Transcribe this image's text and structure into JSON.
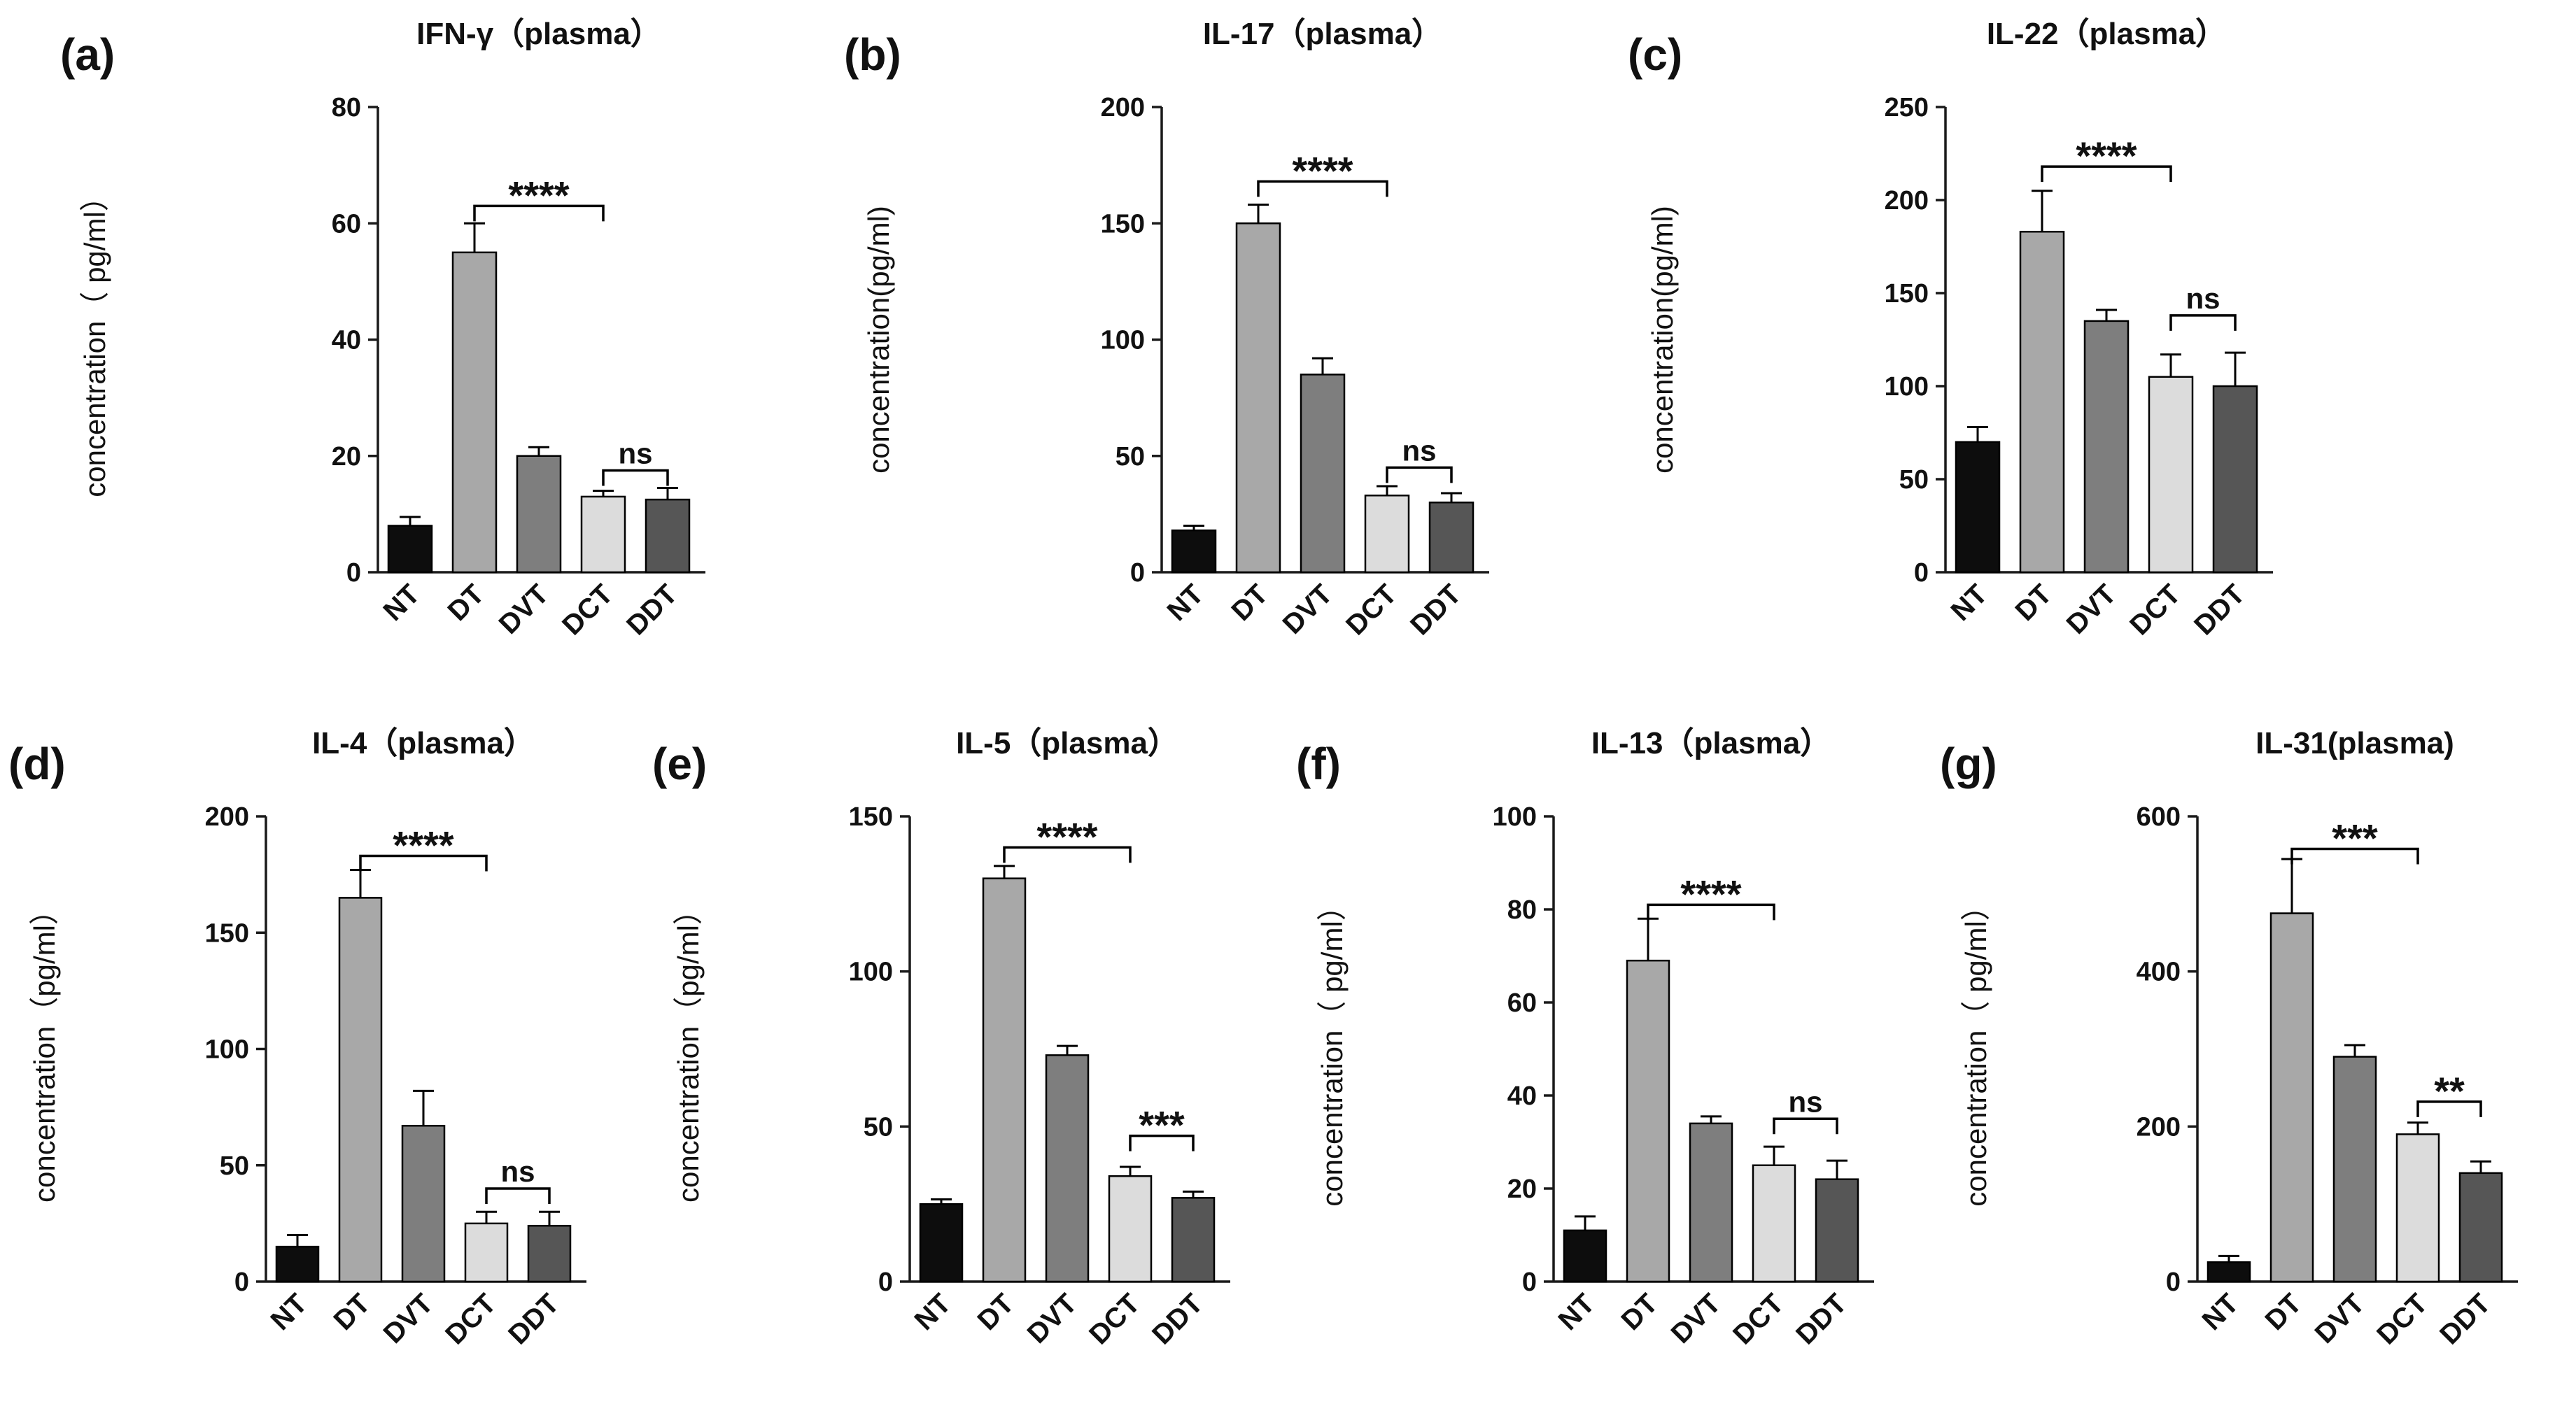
{
  "figure": {
    "categories": [
      "NT",
      "DT",
      "DVT",
      "DCT",
      "DDT"
    ],
    "bar_fill_colors": [
      "#0d0d0d",
      "#a8a8a8",
      "#7e7e7e",
      "#dcdcdc",
      "#565656"
    ],
    "bar_outline_color": "#000000",
    "axis_color": "#1a1a1a",
    "background_color": "#ffffff"
  },
  "chart_data": [
    {
      "type": "bar",
      "row": 1,
      "panel_label": "(a)",
      "title": "IFN-γ（plasma）",
      "ylabel": "concentration（ pg/ml）",
      "categories": [
        "NT",
        "DT",
        "DVT",
        "DCT",
        "DDT"
      ],
      "values": [
        8,
        55,
        20,
        13,
        12.5
      ],
      "errors": [
        1.5,
        5,
        1.5,
        1,
        2
      ],
      "ylim": [
        0,
        80
      ],
      "yticks": [
        0,
        20,
        40,
        60,
        80
      ],
      "grid": false,
      "legend": false,
      "significance": [
        {
          "from": "DT",
          "to": "DCT",
          "label": "****",
          "y": 63
        },
        {
          "from": "DCT",
          "to": "DDT",
          "label": "ns",
          "y": 17.5
        }
      ]
    },
    {
      "type": "bar",
      "row": 1,
      "panel_label": "(b)",
      "title": "IL-17（plasma）",
      "ylabel": "concentration(pg/ml)",
      "categories": [
        "NT",
        "DT",
        "DVT",
        "DCT",
        "DDT"
      ],
      "values": [
        18,
        150,
        85,
        33,
        30
      ],
      "errors": [
        2,
        8,
        7,
        4,
        4
      ],
      "ylim": [
        0,
        200
      ],
      "yticks": [
        0,
        50,
        100,
        150,
        200
      ],
      "grid": false,
      "legend": false,
      "significance": [
        {
          "from": "DT",
          "to": "DCT",
          "label": "****",
          "y": 168
        },
        {
          "from": "DCT",
          "to": "DDT",
          "label": "ns",
          "y": 45
        }
      ]
    },
    {
      "type": "bar",
      "row": 1,
      "panel_label": "(c)",
      "title": "IL-22（plasma）",
      "ylabel": "concentration(pg/ml)",
      "categories": [
        "NT",
        "DT",
        "DVT",
        "DCT",
        "DDT"
      ],
      "values": [
        70,
        183,
        135,
        105,
        100
      ],
      "errors": [
        8,
        22,
        6,
        12,
        18
      ],
      "ylim": [
        0,
        250
      ],
      "yticks": [
        0,
        50,
        100,
        150,
        200,
        250
      ],
      "grid": false,
      "legend": false,
      "significance": [
        {
          "from": "DT",
          "to": "DCT",
          "label": "****",
          "y": 218
        },
        {
          "from": "DCT",
          "to": "DDT",
          "label": "ns",
          "y": 138
        }
      ]
    },
    {
      "type": "bar",
      "row": 2,
      "panel_label": "(d)",
      "title": "IL-4（plasma）",
      "ylabel": "concentration（pg/ml）",
      "categories": [
        "NT",
        "DT",
        "DVT",
        "DCT",
        "DDT"
      ],
      "values": [
        15,
        165,
        67,
        25,
        24
      ],
      "errors": [
        5,
        12,
        15,
        5,
        6
      ],
      "ylim": [
        0,
        200
      ],
      "yticks": [
        0,
        50,
        100,
        150,
        200
      ],
      "grid": false,
      "legend": false,
      "significance": [
        {
          "from": "DT",
          "to": "DCT",
          "label": "****",
          "y": 183
        },
        {
          "from": "DCT",
          "to": "DDT",
          "label": "ns",
          "y": 40
        }
      ]
    },
    {
      "type": "bar",
      "row": 2,
      "panel_label": "(e)",
      "title": "IL-5（plasma）",
      "ylabel": "concentration（pg/ml）",
      "categories": [
        "NT",
        "DT",
        "DVT",
        "DCT",
        "DDT"
      ],
      "values": [
        25,
        130,
        73,
        34,
        27
      ],
      "errors": [
        1.5,
        4,
        3,
        3,
        2
      ],
      "ylim": [
        0,
        150
      ],
      "yticks": [
        0,
        50,
        100,
        150
      ],
      "grid": false,
      "legend": false,
      "significance": [
        {
          "from": "DT",
          "to": "DCT",
          "label": "****",
          "y": 140
        },
        {
          "from": "DCT",
          "to": "DDT",
          "label": "***",
          "y": 47
        }
      ]
    },
    {
      "type": "bar",
      "row": 2,
      "panel_label": "(f)",
      "title": "IL-13（plasma）",
      "ylabel": "concentration（ pg/ml）",
      "categories": [
        "NT",
        "DT",
        "DVT",
        "DCT",
        "DDT"
      ],
      "values": [
        11,
        69,
        34,
        25,
        22
      ],
      "errors": [
        3,
        9,
        1.5,
        4,
        4
      ],
      "ylim": [
        0,
        100
      ],
      "yticks": [
        0,
        20,
        40,
        60,
        80,
        100
      ],
      "grid": false,
      "legend": false,
      "significance": [
        {
          "from": "DT",
          "to": "DCT",
          "label": "****",
          "y": 81
        },
        {
          "from": "DCT",
          "to": "DDT",
          "label": "ns",
          "y": 35
        }
      ]
    },
    {
      "type": "bar",
      "row": 2,
      "panel_label": "(g)",
      "title": "IL-31(plasma)",
      "ylabel": "concentration（ pg/ml）",
      "categories": [
        "NT",
        "DT",
        "DVT",
        "DCT",
        "DDT"
      ],
      "values": [
        25,
        475,
        290,
        190,
        140
      ],
      "errors": [
        8,
        70,
        15,
        15,
        15
      ],
      "ylim": [
        0,
        600
      ],
      "yticks": [
        0,
        200,
        400,
        600
      ],
      "grid": false,
      "legend": false,
      "significance": [
        {
          "from": "DT",
          "to": "DCT",
          "label": "***",
          "y": 558
        },
        {
          "from": "DCT",
          "to": "DDT",
          "label": "**",
          "y": 232
        }
      ]
    }
  ]
}
